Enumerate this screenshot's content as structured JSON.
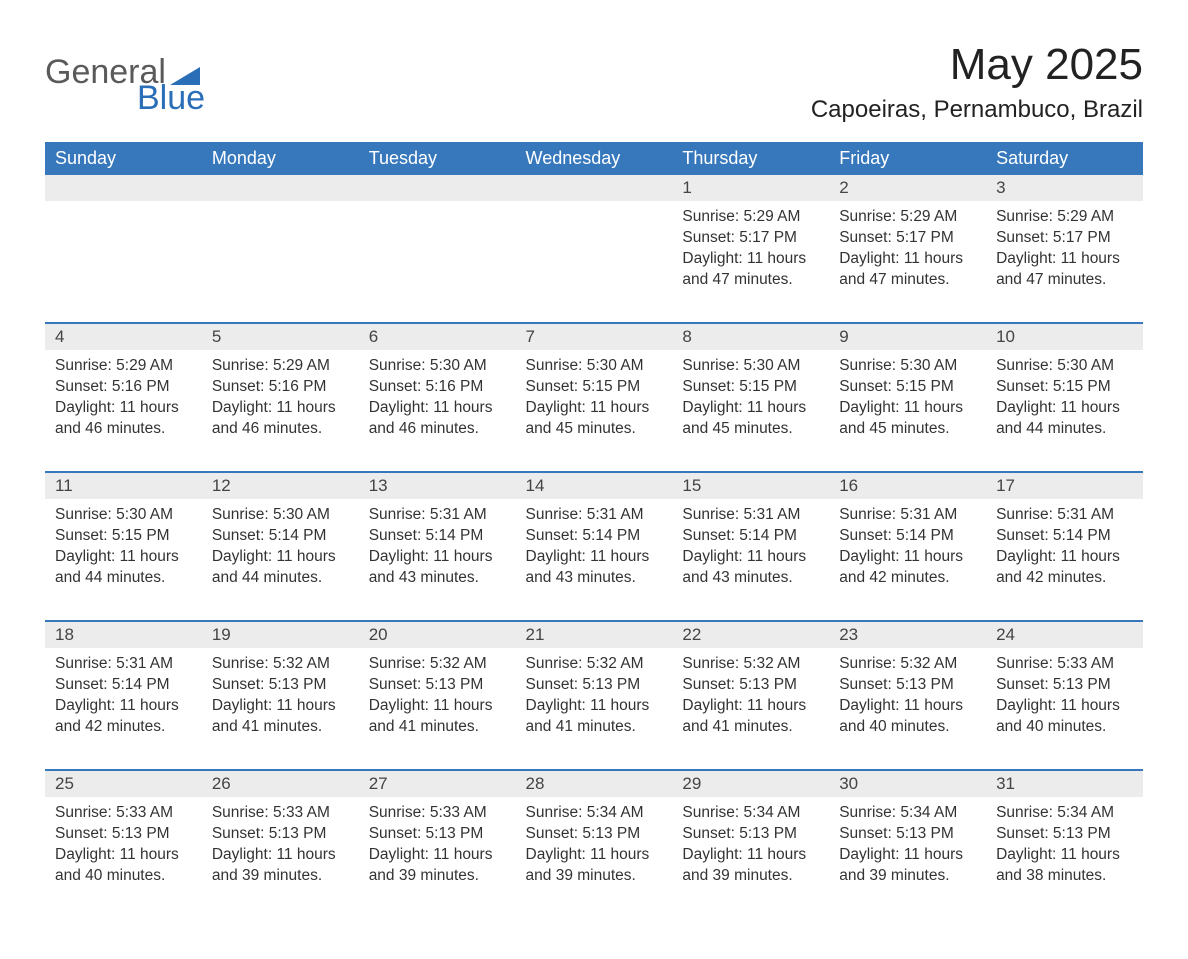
{
  "logo": {
    "text1": "General",
    "text2": "Blue"
  },
  "title": "May 2025",
  "location": "Capoeiras, Pernambuco, Brazil",
  "header_color": "#3778bd",
  "header_text_color": "#ffffff",
  "daynum_bg": "#ececec",
  "line_color": "#3778bd",
  "background_color": "#ffffff",
  "title_fontsize": 44,
  "location_fontsize": 24,
  "header_fontsize": 18,
  "body_fontsize": 15.5,
  "day_headers": [
    "Sunday",
    "Monday",
    "Tuesday",
    "Wednesday",
    "Thursday",
    "Friday",
    "Saturday"
  ],
  "weeks": [
    [
      {
        "n": "",
        "sunrise": "",
        "sunset": "",
        "daylight": ""
      },
      {
        "n": "",
        "sunrise": "",
        "sunset": "",
        "daylight": ""
      },
      {
        "n": "",
        "sunrise": "",
        "sunset": "",
        "daylight": ""
      },
      {
        "n": "",
        "sunrise": "",
        "sunset": "",
        "daylight": ""
      },
      {
        "n": "1",
        "sunrise": "Sunrise: 5:29 AM",
        "sunset": "Sunset: 5:17 PM",
        "daylight": "Daylight: 11 hours and 47 minutes."
      },
      {
        "n": "2",
        "sunrise": "Sunrise: 5:29 AM",
        "sunset": "Sunset: 5:17 PM",
        "daylight": "Daylight: 11 hours and 47 minutes."
      },
      {
        "n": "3",
        "sunrise": "Sunrise: 5:29 AM",
        "sunset": "Sunset: 5:17 PM",
        "daylight": "Daylight: 11 hours and 47 minutes."
      }
    ],
    [
      {
        "n": "4",
        "sunrise": "Sunrise: 5:29 AM",
        "sunset": "Sunset: 5:16 PM",
        "daylight": "Daylight: 11 hours and 46 minutes."
      },
      {
        "n": "5",
        "sunrise": "Sunrise: 5:29 AM",
        "sunset": "Sunset: 5:16 PM",
        "daylight": "Daylight: 11 hours and 46 minutes."
      },
      {
        "n": "6",
        "sunrise": "Sunrise: 5:30 AM",
        "sunset": "Sunset: 5:16 PM",
        "daylight": "Daylight: 11 hours and 46 minutes."
      },
      {
        "n": "7",
        "sunrise": "Sunrise: 5:30 AM",
        "sunset": "Sunset: 5:15 PM",
        "daylight": "Daylight: 11 hours and 45 minutes."
      },
      {
        "n": "8",
        "sunrise": "Sunrise: 5:30 AM",
        "sunset": "Sunset: 5:15 PM",
        "daylight": "Daylight: 11 hours and 45 minutes."
      },
      {
        "n": "9",
        "sunrise": "Sunrise: 5:30 AM",
        "sunset": "Sunset: 5:15 PM",
        "daylight": "Daylight: 11 hours and 45 minutes."
      },
      {
        "n": "10",
        "sunrise": "Sunrise: 5:30 AM",
        "sunset": "Sunset: 5:15 PM",
        "daylight": "Daylight: 11 hours and 44 minutes."
      }
    ],
    [
      {
        "n": "11",
        "sunrise": "Sunrise: 5:30 AM",
        "sunset": "Sunset: 5:15 PM",
        "daylight": "Daylight: 11 hours and 44 minutes."
      },
      {
        "n": "12",
        "sunrise": "Sunrise: 5:30 AM",
        "sunset": "Sunset: 5:14 PM",
        "daylight": "Daylight: 11 hours and 44 minutes."
      },
      {
        "n": "13",
        "sunrise": "Sunrise: 5:31 AM",
        "sunset": "Sunset: 5:14 PM",
        "daylight": "Daylight: 11 hours and 43 minutes."
      },
      {
        "n": "14",
        "sunrise": "Sunrise: 5:31 AM",
        "sunset": "Sunset: 5:14 PM",
        "daylight": "Daylight: 11 hours and 43 minutes."
      },
      {
        "n": "15",
        "sunrise": "Sunrise: 5:31 AM",
        "sunset": "Sunset: 5:14 PM",
        "daylight": "Daylight: 11 hours and 43 minutes."
      },
      {
        "n": "16",
        "sunrise": "Sunrise: 5:31 AM",
        "sunset": "Sunset: 5:14 PM",
        "daylight": "Daylight: 11 hours and 42 minutes."
      },
      {
        "n": "17",
        "sunrise": "Sunrise: 5:31 AM",
        "sunset": "Sunset: 5:14 PM",
        "daylight": "Daylight: 11 hours and 42 minutes."
      }
    ],
    [
      {
        "n": "18",
        "sunrise": "Sunrise: 5:31 AM",
        "sunset": "Sunset: 5:14 PM",
        "daylight": "Daylight: 11 hours and 42 minutes."
      },
      {
        "n": "19",
        "sunrise": "Sunrise: 5:32 AM",
        "sunset": "Sunset: 5:13 PM",
        "daylight": "Daylight: 11 hours and 41 minutes."
      },
      {
        "n": "20",
        "sunrise": "Sunrise: 5:32 AM",
        "sunset": "Sunset: 5:13 PM",
        "daylight": "Daylight: 11 hours and 41 minutes."
      },
      {
        "n": "21",
        "sunrise": "Sunrise: 5:32 AM",
        "sunset": "Sunset: 5:13 PM",
        "daylight": "Daylight: 11 hours and 41 minutes."
      },
      {
        "n": "22",
        "sunrise": "Sunrise: 5:32 AM",
        "sunset": "Sunset: 5:13 PM",
        "daylight": "Daylight: 11 hours and 41 minutes."
      },
      {
        "n": "23",
        "sunrise": "Sunrise: 5:32 AM",
        "sunset": "Sunset: 5:13 PM",
        "daylight": "Daylight: 11 hours and 40 minutes."
      },
      {
        "n": "24",
        "sunrise": "Sunrise: 5:33 AM",
        "sunset": "Sunset: 5:13 PM",
        "daylight": "Daylight: 11 hours and 40 minutes."
      }
    ],
    [
      {
        "n": "25",
        "sunrise": "Sunrise: 5:33 AM",
        "sunset": "Sunset: 5:13 PM",
        "daylight": "Daylight: 11 hours and 40 minutes."
      },
      {
        "n": "26",
        "sunrise": "Sunrise: 5:33 AM",
        "sunset": "Sunset: 5:13 PM",
        "daylight": "Daylight: 11 hours and 39 minutes."
      },
      {
        "n": "27",
        "sunrise": "Sunrise: 5:33 AM",
        "sunset": "Sunset: 5:13 PM",
        "daylight": "Daylight: 11 hours and 39 minutes."
      },
      {
        "n": "28",
        "sunrise": "Sunrise: 5:34 AM",
        "sunset": "Sunset: 5:13 PM",
        "daylight": "Daylight: 11 hours and 39 minutes."
      },
      {
        "n": "29",
        "sunrise": "Sunrise: 5:34 AM",
        "sunset": "Sunset: 5:13 PM",
        "daylight": "Daylight: 11 hours and 39 minutes."
      },
      {
        "n": "30",
        "sunrise": "Sunrise: 5:34 AM",
        "sunset": "Sunset: 5:13 PM",
        "daylight": "Daylight: 11 hours and 39 minutes."
      },
      {
        "n": "31",
        "sunrise": "Sunrise: 5:34 AM",
        "sunset": "Sunset: 5:13 PM",
        "daylight": "Daylight: 11 hours and 38 minutes."
      }
    ]
  ]
}
